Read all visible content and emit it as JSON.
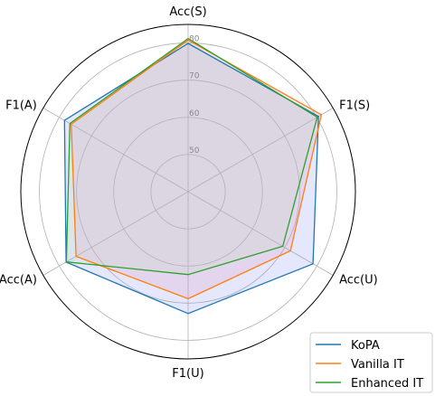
{
  "chart_data": {
    "type": "radar",
    "categories": [
      "Acc(S)",
      "F1(S)",
      "Acc(U)",
      "F1(U)",
      "Acc(A)",
      "F1(A)"
    ],
    "rlim": [
      40,
      85
    ],
    "rticks": [
      50,
      60,
      70,
      80
    ],
    "rtick_labels": [
      "50",
      "60",
      "70",
      "80"
    ],
    "series": [
      {
        "name": "KoPA",
        "color": "#1f77b4",
        "fill": "#8a96f0",
        "fill_opacity": 0.22,
        "values": [
          79.9,
          80.5,
          78.8,
          72.8,
          77.9,
          78.4
        ]
      },
      {
        "name": "Vanilla IT",
        "color": "#ff7f0e",
        "fill": "#e39ac6",
        "fill_opacity": 0.25,
        "values": [
          80.8,
          81.4,
          71.8,
          68.8,
          74.8,
          76.3
        ]
      },
      {
        "name": "Enhanced IT",
        "color": "#2ca02c",
        "fill": "#b9d8a8",
        "fill_opacity": 0.18,
        "values": [
          81.2,
          80.1,
          69.4,
          62.3,
          77.8,
          76.7
        ]
      }
    ],
    "grid": true,
    "legend_position": "lower-right"
  }
}
